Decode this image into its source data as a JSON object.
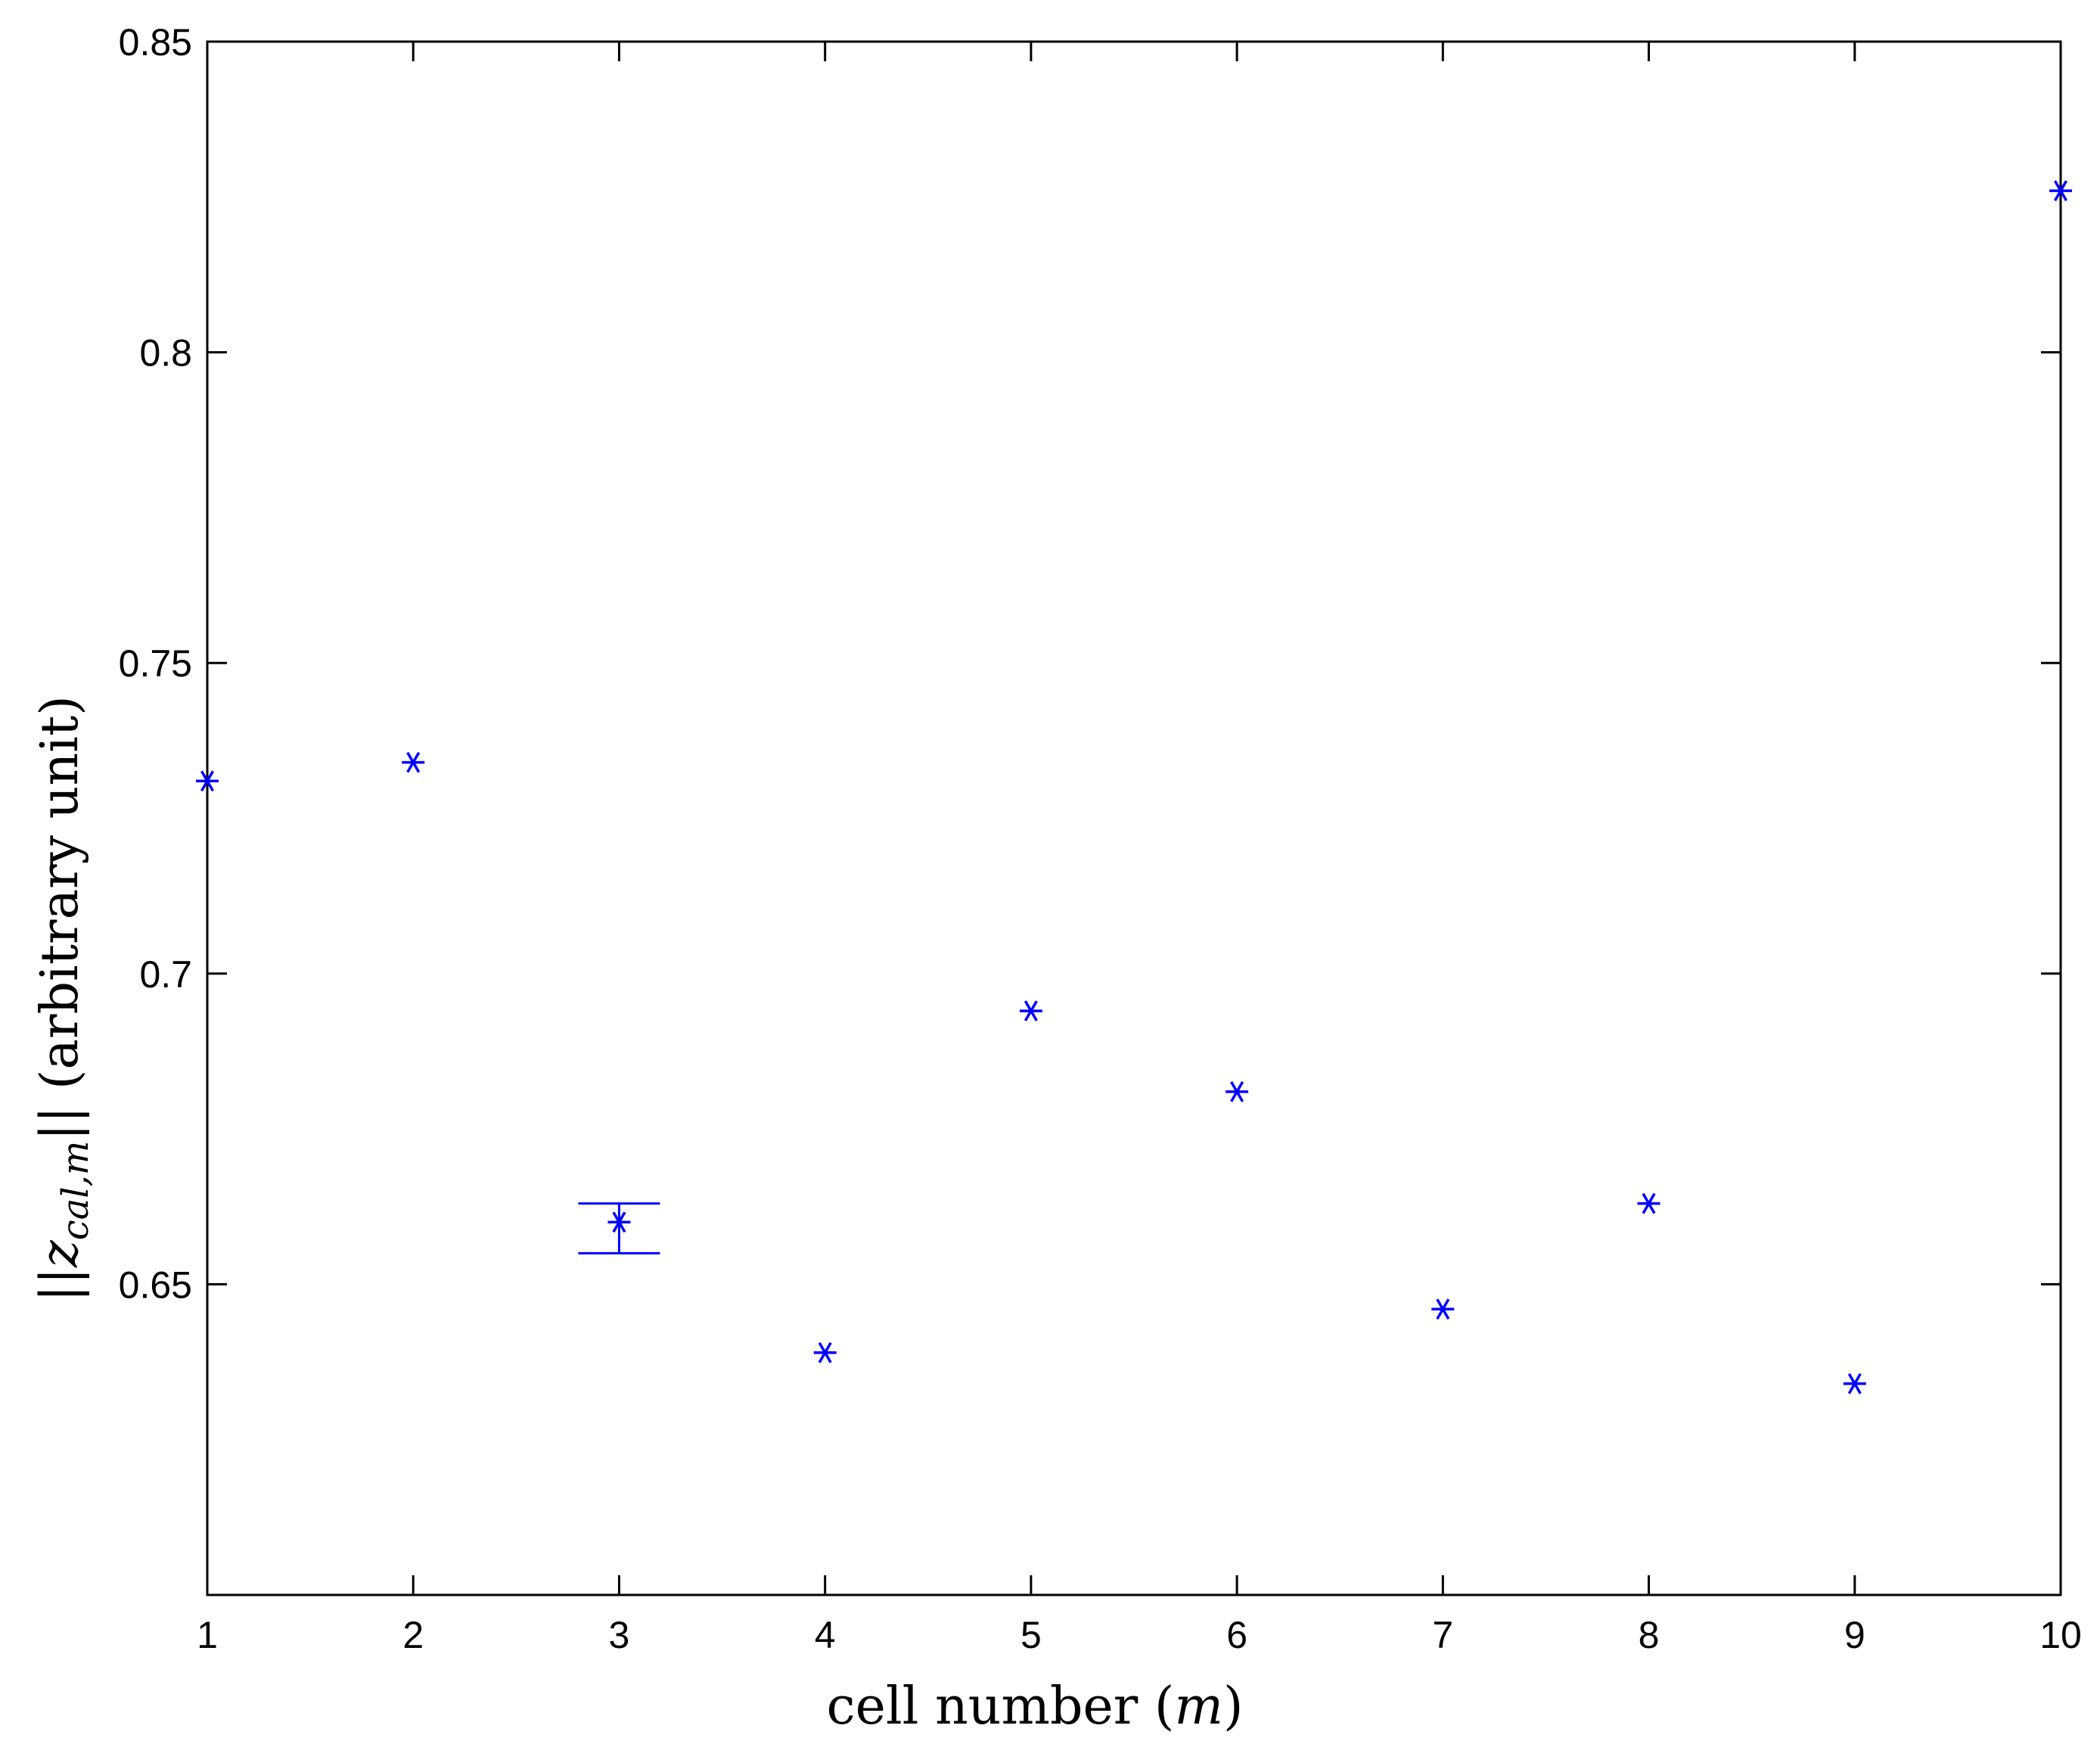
{
  "chart_data": {
    "type": "scatter",
    "title": "",
    "xlabel": {
      "text": "cell number (",
      "math": "m",
      "close": ")"
    },
    "ylabel": {
      "open": "||",
      "math": "z",
      "sub": "cal,m",
      "close": "||",
      "text": " (arbitrary unit)"
    },
    "xlim": [
      1,
      10
    ],
    "ylim": [
      0.6,
      0.85
    ],
    "xticks": [
      1,
      2,
      3,
      4,
      5,
      6,
      7,
      8,
      9,
      10
    ],
    "xtick_labels": [
      "1",
      "2",
      "3",
      "4",
      "5",
      "6",
      "7",
      "8",
      "9",
      "10"
    ],
    "yticks": [
      0.65,
      0.7,
      0.75,
      0.8,
      0.85
    ],
    "ytick_labels": [
      "0.65",
      "0.7",
      "0.75",
      "0.8",
      "0.85"
    ],
    "grid": false,
    "marker": "asterisk",
    "color": "#0000ff",
    "series": [
      {
        "x": [
          1,
          2,
          3,
          4,
          5,
          6,
          7,
          8,
          9,
          10
        ],
        "y": [
          0.731,
          0.734,
          0.66,
          0.639,
          0.694,
          0.681,
          0.646,
          0.663,
          0.634,
          0.826
        ]
      }
    ],
    "error_bars": [
      {
        "x": 3,
        "low": 0.655,
        "high": 0.663
      }
    ]
  }
}
